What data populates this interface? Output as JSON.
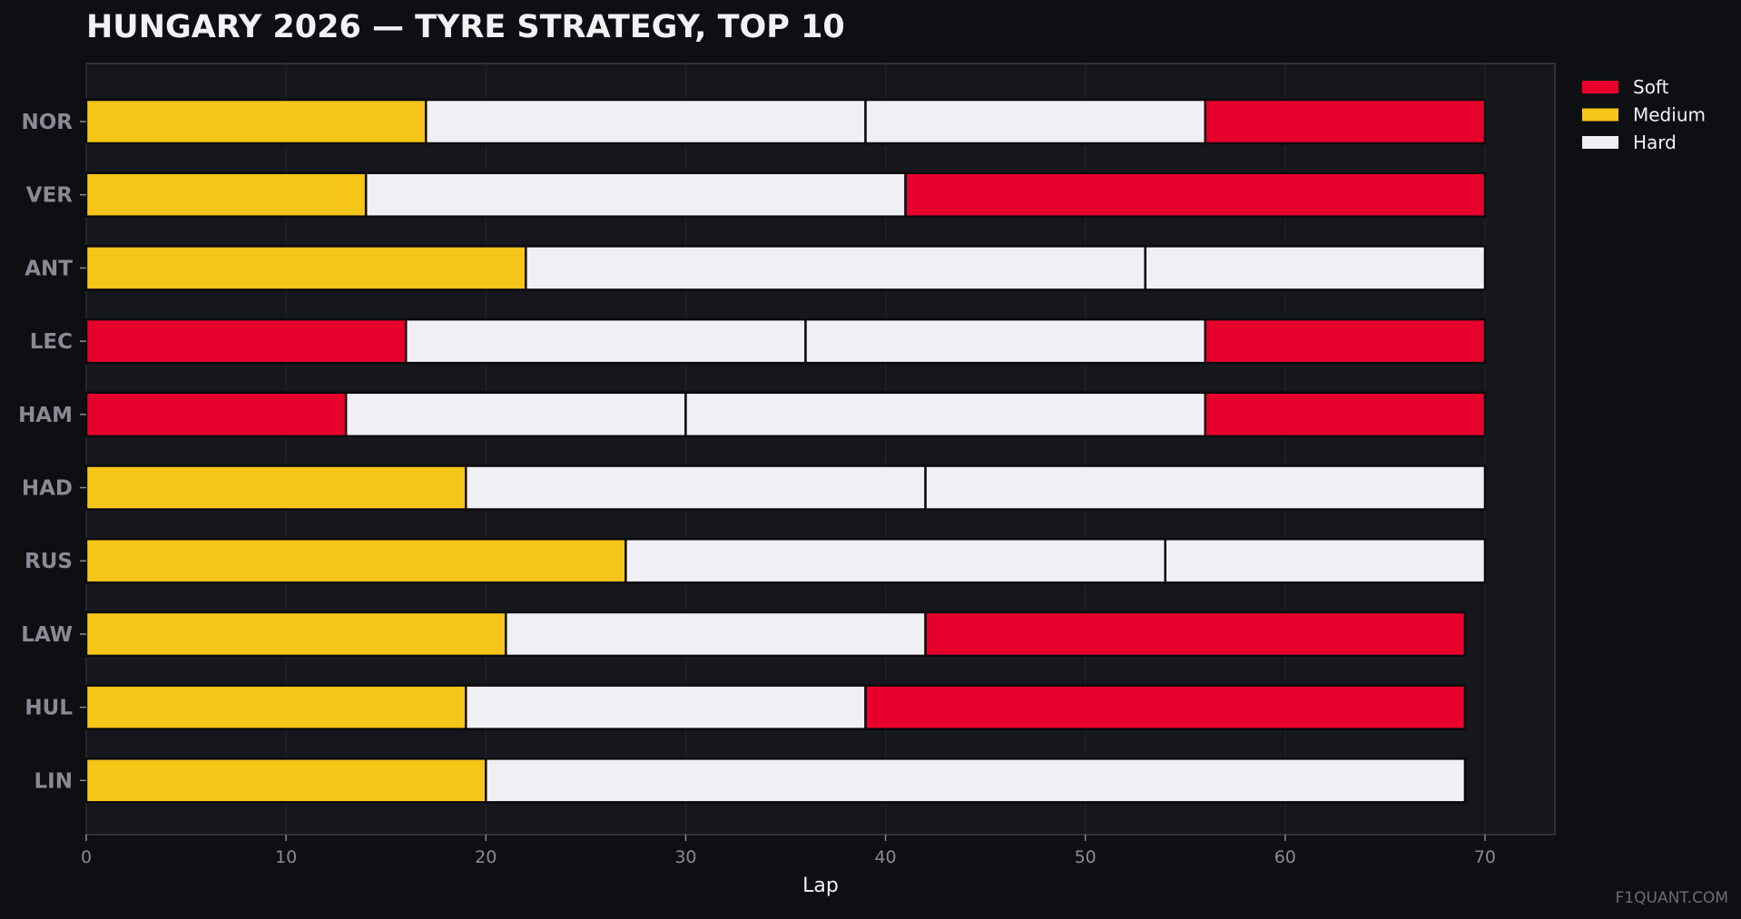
{
  "colors": {
    "page_background": "#0e0f12",
    "plot_background": "#16171c",
    "grid": "#23242b",
    "axis": "#3a3b44",
    "soft": "#e8002d",
    "medium": "#f5c518",
    "hard": "#f0f0f4",
    "segment_border": "#0b0b0d"
  },
  "watermark": "F1QUANT.COM",
  "chart_data": {
    "type": "bar",
    "orientation": "horizontal",
    "stacked": true,
    "title": "HUNGARY 2026 — TYRE STRATEGY, TOP 10",
    "xlabel": "Lap",
    "ylabel": "",
    "xlim": [
      0,
      73.5
    ],
    "xticks": [
      0,
      10,
      20,
      30,
      40,
      50,
      60,
      70
    ],
    "grid": "vertical",
    "legend_position": "outside top-right",
    "legend": [
      {
        "compound": "soft",
        "label": "Soft"
      },
      {
        "compound": "medium",
        "label": "Medium"
      },
      {
        "compound": "hard",
        "label": "Hard"
      }
    ],
    "drivers": [
      {
        "code": "NOR",
        "stints": [
          {
            "compound": "medium",
            "start": 0,
            "end": 17
          },
          {
            "compound": "hard",
            "start": 17,
            "end": 39
          },
          {
            "compound": "hard",
            "start": 39,
            "end": 56
          },
          {
            "compound": "soft",
            "start": 56,
            "end": 70
          }
        ]
      },
      {
        "code": "VER",
        "stints": [
          {
            "compound": "medium",
            "start": 0,
            "end": 14
          },
          {
            "compound": "hard",
            "start": 14,
            "end": 41
          },
          {
            "compound": "soft",
            "start": 41,
            "end": 70
          }
        ]
      },
      {
        "code": "ANT",
        "stints": [
          {
            "compound": "medium",
            "start": 0,
            "end": 22
          },
          {
            "compound": "hard",
            "start": 22,
            "end": 53
          },
          {
            "compound": "hard",
            "start": 53,
            "end": 70
          }
        ]
      },
      {
        "code": "LEC",
        "stints": [
          {
            "compound": "soft",
            "start": 0,
            "end": 16
          },
          {
            "compound": "hard",
            "start": 16,
            "end": 36
          },
          {
            "compound": "hard",
            "start": 36,
            "end": 56
          },
          {
            "compound": "soft",
            "start": 56,
            "end": 70
          }
        ]
      },
      {
        "code": "HAM",
        "stints": [
          {
            "compound": "soft",
            "start": 0,
            "end": 13
          },
          {
            "compound": "hard",
            "start": 13,
            "end": 30
          },
          {
            "compound": "hard",
            "start": 30,
            "end": 56
          },
          {
            "compound": "soft",
            "start": 56,
            "end": 70
          }
        ]
      },
      {
        "code": "HAD",
        "stints": [
          {
            "compound": "medium",
            "start": 0,
            "end": 19
          },
          {
            "compound": "hard",
            "start": 19,
            "end": 42
          },
          {
            "compound": "hard",
            "start": 42,
            "end": 70
          }
        ]
      },
      {
        "code": "RUS",
        "stints": [
          {
            "compound": "medium",
            "start": 0,
            "end": 27
          },
          {
            "compound": "hard",
            "start": 27,
            "end": 54
          },
          {
            "compound": "hard",
            "start": 54,
            "end": 70
          }
        ]
      },
      {
        "code": "LAW",
        "stints": [
          {
            "compound": "medium",
            "start": 0,
            "end": 21
          },
          {
            "compound": "hard",
            "start": 21,
            "end": 42
          },
          {
            "compound": "soft",
            "start": 42,
            "end": 69
          }
        ]
      },
      {
        "code": "HUL",
        "stints": [
          {
            "compound": "medium",
            "start": 0,
            "end": 19
          },
          {
            "compound": "hard",
            "start": 19,
            "end": 39
          },
          {
            "compound": "soft",
            "start": 39,
            "end": 69
          }
        ]
      },
      {
        "code": "LIN",
        "stints": [
          {
            "compound": "medium",
            "start": 0,
            "end": 20
          },
          {
            "compound": "hard",
            "start": 20,
            "end": 69
          }
        ]
      }
    ]
  }
}
